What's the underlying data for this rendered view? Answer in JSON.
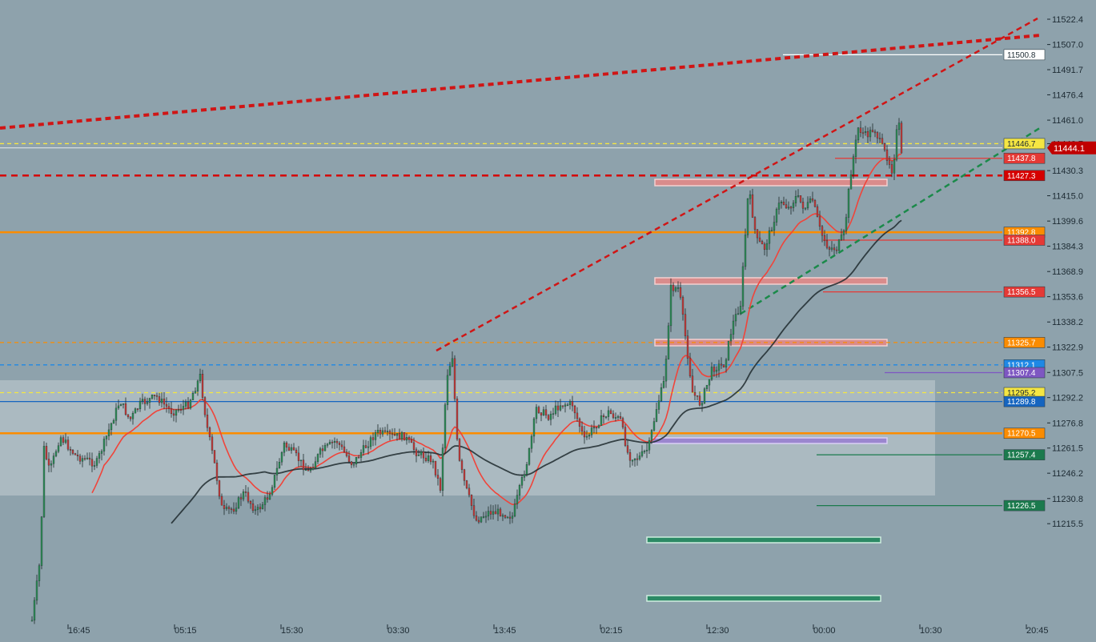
{
  "chart_data": {
    "type": "candlestick",
    "x_ticks": [
      "16:45",
      "05:15",
      "15:30",
      "03:30",
      "13:45",
      "02:15",
      "12:30",
      "00:00",
      "10:30",
      "20:45"
    ],
    "y_ticks": [
      "11522.4",
      "11507.0",
      "11491.7",
      "11476.4",
      "11461.0",
      "11446.7",
      "11430.3",
      "11415.0",
      "11399.6",
      "11384.3",
      "11368.9",
      "11353.6",
      "11338.2",
      "11322.9",
      "11307.5",
      "11292.2",
      "11276.8",
      "11261.5",
      "11246.2",
      "11230.8",
      "11215.5"
    ],
    "ylim": [
      11213,
      11532
    ],
    "current_price": {
      "value": 11444.1,
      "label": "11444.1",
      "color": "#c00000"
    },
    "levels": [
      {
        "label": "11500.8",
        "value": 11500.8,
        "color": "#ffffff",
        "style": "solid"
      },
      {
        "label": "11446.7",
        "value": 11446.7,
        "color": "#f5e642",
        "style": "dashed"
      },
      {
        "label": "11437.8",
        "value": 11437.8,
        "color": "#e53935",
        "style": "solid"
      },
      {
        "label": "11427.3",
        "value": 11427.3,
        "color": "#d50000",
        "style": "dashed"
      },
      {
        "label": "11392.8",
        "value": 11392.8,
        "color": "#fb8c00",
        "style": "solid"
      },
      {
        "label": "11388.0",
        "value": 11388.0,
        "color": "#e53935",
        "style": "solid"
      },
      {
        "label": "11356.5",
        "value": 11356.5,
        "color": "#e53935",
        "style": "solid"
      },
      {
        "label": "11325.7",
        "value": 11325.7,
        "color": "#fb8c00",
        "style": "dashed"
      },
      {
        "label": "11312.1",
        "value": 11312.1,
        "color": "#1e88e5",
        "style": "dashed"
      },
      {
        "label": "11307.4",
        "value": 11307.4,
        "color": "#7e57c2",
        "style": "solid"
      },
      {
        "label": "11295.2",
        "value": 11295.2,
        "color": "#f5e642",
        "style": "dashed"
      },
      {
        "label": "11289.8",
        "value": 11289.8,
        "color": "#1565c0",
        "style": "solid"
      },
      {
        "label": "11270.5",
        "value": 11270.5,
        "color": "#fb8c00",
        "style": "solid"
      },
      {
        "label": "11257.4",
        "value": 11257.4,
        "color": "#1b7a4d",
        "style": "solid"
      },
      {
        "label": "11226.5",
        "value": 11226.5,
        "color": "#1b7a4d",
        "style": "solid"
      }
    ],
    "colors": {
      "background": "#8ea2ac",
      "candle_up": "#2e8b57",
      "candle_down": "#c43a3a",
      "ma_fast": "#f0443a",
      "ma_slow": "#1f2a2e",
      "trend_red": "#d01515",
      "trend_green": "#1b8a4a",
      "range_box": "#c3ced3",
      "supply_zone": "#d98c8c",
      "demand_zone": "#2c8a65",
      "purple_zone": "#9b86cf"
    },
    "grid": false
  }
}
